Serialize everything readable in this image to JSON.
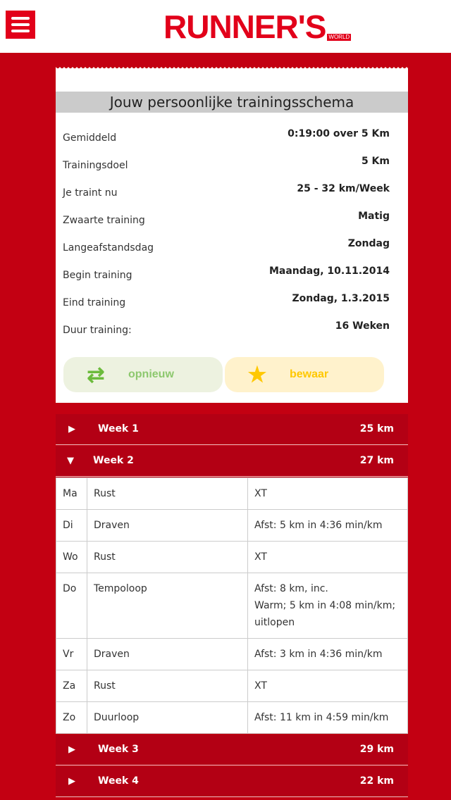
{
  "header": {
    "logo": "RUNNER'S",
    "logo_sub": "WORLD"
  },
  "card": {
    "title": "Jouw persoonlijke trainingsschema",
    "rows": [
      {
        "label": "Gemiddeld",
        "value": "0:19:00 over 5 Km"
      },
      {
        "label": "Trainingsdoel",
        "value": "5 Km"
      },
      {
        "label": "Je traint nu",
        "value": "25 - 32 km/Week"
      },
      {
        "label": "Zwaarte training",
        "value": "Matig"
      },
      {
        "label": "Langeafstandsdag",
        "value": "Zondag"
      },
      {
        "label": "Begin training",
        "value": "Maandag, 10.11.2014"
      },
      {
        "label": "Eind training",
        "value": "Zondag, 1.3.2015"
      },
      {
        "label": "Duur training:",
        "value": "16 Weken"
      }
    ],
    "reset_label": "opnieuw",
    "save_label": "bewaar"
  },
  "weeks": [
    {
      "name": "Week 1",
      "km": "25 km"
    },
    {
      "name": "Week 2",
      "km": "27 km"
    },
    {
      "name": "Week 3",
      "km": "29 km"
    },
    {
      "name": "Week 4",
      "km": "22 km"
    }
  ],
  "week2_days": [
    {
      "day": "Ma",
      "type": "Rust",
      "detail": "XT"
    },
    {
      "day": "Di",
      "type": "Draven",
      "detail": "Afst: 5 km in 4:36 min/km"
    },
    {
      "day": "Wo",
      "type": "Rust",
      "detail": "XT"
    },
    {
      "day": "Do",
      "type": "Tempoloop",
      "detail": "Afst: 8 km, inc.\nWarm; 5 km in 4:08 min/km; uitlopen"
    },
    {
      "day": "Vr",
      "type": "Draven",
      "detail": "Afst: 3 km in 4:36 min/km"
    },
    {
      "day": "Za",
      "type": "Rust",
      "detail": "XT"
    },
    {
      "day": "Zo",
      "type": "Duurloop",
      "detail": "Afst: 11 km in 4:59 min/km"
    }
  ],
  "colors": {
    "brand": "#e2001a",
    "background": "#c30012",
    "week_bar": "#b30014"
  }
}
